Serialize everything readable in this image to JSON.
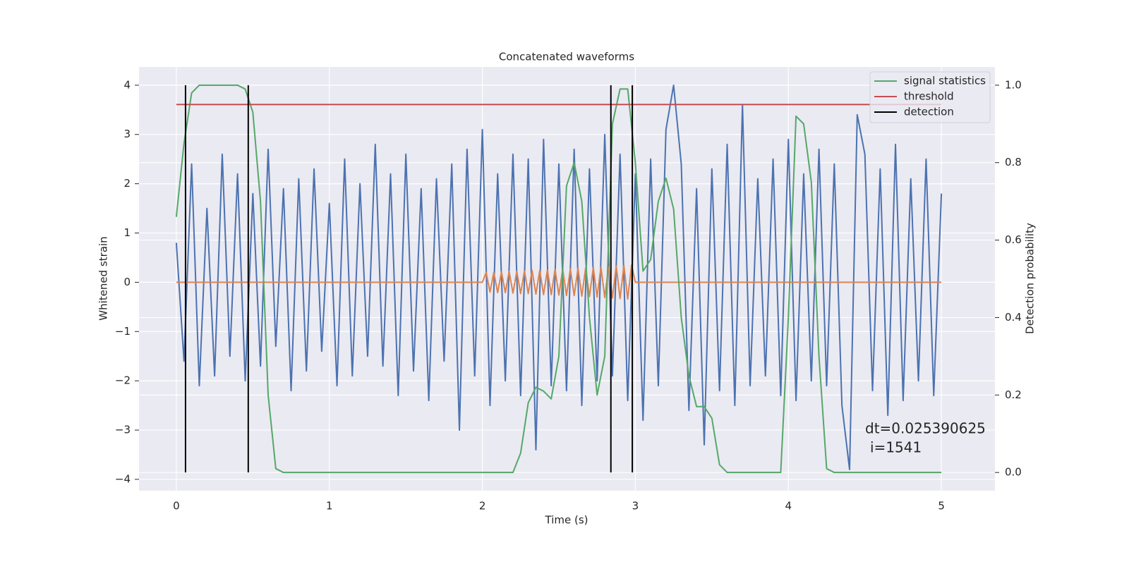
{
  "chart_data": {
    "type": "line",
    "title": "Concatenated waveforms",
    "x_label": "Time (s)",
    "y_label": "Whitened strain",
    "y2_label": "Detection probability",
    "xlim": [
      -0.244,
      5.35
    ],
    "ylim": [
      -4.23,
      4.37
    ],
    "y2lim": [
      -0.047,
      1.047
    ],
    "xticks": [
      0,
      1,
      2,
      3,
      4,
      5
    ],
    "yticks": [
      {
        "value": -4,
        "label": "−4"
      },
      {
        "value": -3,
        "label": "−3"
      },
      {
        "value": -2,
        "label": "−2"
      },
      {
        "value": -1,
        "label": "−1"
      },
      0,
      1,
      2,
      3,
      4
    ],
    "y2ticks": [
      {
        "value": 0,
        "label": "0.0"
      },
      {
        "value": 0.2,
        "label": "0.2"
      },
      {
        "value": 0.4,
        "label": "0.4"
      },
      {
        "value": 0.6,
        "label": "0.6"
      },
      {
        "value": 0.8,
        "label": "0.8"
      },
      {
        "value": 1,
        "label": "1.0"
      }
    ],
    "grid": true,
    "legend": "upper right",
    "annotations": [
      "dt=0.025390625",
      "i=1541"
    ],
    "series": [
      {
        "color": "#4c72b0",
        "x": [
          0,
          0.05,
          0.1,
          0.15,
          0.2,
          0.25,
          0.3,
          0.35,
          0.4,
          0.45,
          0.5,
          0.55,
          0.6,
          0.65,
          0.7,
          0.75,
          0.8,
          0.85,
          0.9,
          0.95,
          1,
          1.05,
          1.1,
          1.15,
          1.2,
          1.25,
          1.3,
          1.35,
          1.4,
          1.45,
          1.5,
          1.55,
          1.6,
          1.65,
          1.7,
          1.75,
          1.8,
          1.85,
          1.9,
          1.95,
          2,
          2.05,
          2.1,
          2.15,
          2.2,
          2.25,
          2.3,
          2.35,
          2.4,
          2.45,
          2.5,
          2.55,
          2.6,
          2.65,
          2.7,
          2.75,
          2.8,
          2.85,
          2.9,
          2.95,
          3,
          3.05,
          3.1,
          3.15,
          3.2,
          3.25,
          3.3,
          3.35,
          3.4,
          3.45,
          3.5,
          3.55,
          3.6,
          3.65,
          3.7,
          3.75,
          3.8,
          3.85,
          3.9,
          3.95,
          4,
          4.05,
          4.1,
          4.15,
          4.2,
          4.25,
          4.3,
          4.35,
          4.4,
          4.45,
          4.5,
          4.55,
          4.6,
          4.65,
          4.7,
          4.75,
          4.8,
          4.85,
          4.9,
          4.95,
          5
        ],
        "values": [
          0.8,
          -1.6,
          2.4,
          -2.1,
          1.5,
          -1.9,
          2.6,
          -1.5,
          2.2,
          -2.0,
          1.8,
          -1.7,
          2.7,
          -1.3,
          1.9,
          -2.2,
          2.1,
          -1.8,
          2.3,
          -1.4,
          1.6,
          -2.1,
          2.5,
          -1.9,
          2.0,
          -1.5,
          2.8,
          -1.7,
          2.2,
          -2.3,
          2.6,
          -1.8,
          1.9,
          -2.4,
          2.1,
          -1.6,
          2.4,
          -3.0,
          2.7,
          -1.9,
          3.1,
          -2.5,
          2.2,
          -2.0,
          2.6,
          -2.3,
          2.5,
          -3.4,
          2.9,
          -2.1,
          2.4,
          -2.2,
          2.7,
          -2.5,
          2.3,
          -2.0,
          3.0,
          -1.9,
          2.6,
          -2.4,
          2.2,
          -2.8,
          2.5,
          -2.1,
          3.1,
          4.0,
          2.4,
          -2.6,
          1.9,
          -3.3,
          2.3,
          -2.2,
          2.8,
          -2.5,
          3.6,
          -2.1,
          2.1,
          -1.9,
          2.5,
          -2.3,
          2.9,
          -2.4,
          2.2,
          -2.0,
          2.7,
          -2.1,
          2.4,
          -2.5,
          -3.8,
          3.4,
          2.6,
          -2.2,
          2.3,
          -2.7,
          2.8,
          -2.4,
          2.1,
          -2.0,
          2.5,
          -2.3,
          1.8
        ]
      },
      {
        "color": "#dd8452",
        "x": [
          0,
          2,
          2.025,
          2.05,
          2.075,
          2.1,
          2.125,
          2.15,
          2.175,
          2.2,
          2.225,
          2.25,
          2.275,
          2.3,
          2.325,
          2.35,
          2.375,
          2.4,
          2.425,
          2.45,
          2.475,
          2.5,
          2.525,
          2.55,
          2.575,
          2.6,
          2.625,
          2.65,
          2.675,
          2.7,
          2.725,
          2.75,
          2.775,
          2.8,
          2.825,
          2.85,
          2.875,
          2.9,
          2.925,
          2.95,
          2.975,
          3,
          5
        ],
        "values": [
          0,
          0,
          0.2,
          -0.2,
          0.2,
          -0.21,
          0.21,
          -0.21,
          0.22,
          -0.22,
          0.22,
          -0.23,
          0.23,
          -0.23,
          0.24,
          -0.24,
          0.24,
          -0.25,
          0.25,
          -0.25,
          0.26,
          -0.26,
          0.26,
          -0.27,
          0.27,
          -0.27,
          0.28,
          -0.28,
          0.29,
          -0.29,
          0.3,
          -0.3,
          0.31,
          -0.31,
          0.32,
          -0.32,
          0.33,
          -0.33,
          0.34,
          -0.34,
          0.35,
          0,
          0
        ]
      },
      {
        "name": "signal statistics",
        "color": "#55a868",
        "axis": "y2",
        "x": [
          0,
          0.05,
          0.1,
          0.15,
          0.4,
          0.45,
          0.5,
          0.55,
          0.6,
          0.65,
          0.7,
          2.2,
          2.25,
          2.3,
          2.35,
          2.4,
          2.45,
          2.5,
          2.55,
          2.6,
          2.65,
          2.7,
          2.75,
          2.8,
          2.85,
          2.9,
          2.95,
          3.0,
          3.05,
          3.1,
          3.15,
          3.2,
          3.25,
          3.3,
          3.35,
          3.4,
          3.45,
          3.5,
          3.55,
          3.6,
          3.95,
          4.0,
          4.05,
          4.1,
          4.15,
          4.2,
          4.25,
          4.3,
          5.0
        ],
        "values": [
          0.66,
          0.85,
          0.98,
          1.0,
          1.0,
          0.99,
          0.93,
          0.7,
          0.2,
          0.01,
          0.0,
          0.0,
          0.05,
          0.18,
          0.22,
          0.21,
          0.19,
          0.3,
          0.74,
          0.8,
          0.7,
          0.4,
          0.2,
          0.3,
          0.9,
          0.99,
          0.99,
          0.8,
          0.52,
          0.55,
          0.7,
          0.76,
          0.68,
          0.4,
          0.25,
          0.17,
          0.17,
          0.14,
          0.02,
          0.0,
          0.0,
          0.4,
          0.92,
          0.9,
          0.75,
          0.3,
          0.01,
          0.0,
          0.0
        ]
      },
      {
        "name": "threshold",
        "color": "#c44e52",
        "axis": "y2",
        "x": [
          0,
          5
        ],
        "values": [
          0.95,
          0.95
        ]
      },
      {
        "name": "detection",
        "color": "#000000",
        "axis": "y2",
        "style": "vline",
        "x": [
          0.06,
          0.47,
          2.84,
          2.98
        ],
        "values": [
          1,
          1,
          1,
          1
        ]
      }
    ]
  }
}
